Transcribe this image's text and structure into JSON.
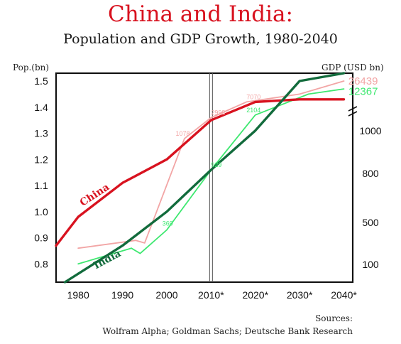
{
  "title": "China and India:",
  "subtitle": "Population and GDP Growth, 1980-2040",
  "sources_heading": "Sources:",
  "sources_text": "Wolfram Alpha; Goldman Sachs; Deutsche Bank Research",
  "colors": {
    "china_pop": "#d8121f",
    "china_gdp": "#f2a5a5",
    "india_pop": "#126b3c",
    "india_gdp": "#3ee870",
    "axis": "#111111",
    "title": "#d8121f"
  },
  "chart_data": {
    "type": "line",
    "title": "Population and GDP Growth, 1980-2040",
    "x_tick_labels": [
      "1980",
      "1990",
      "2000",
      "2010*",
      "2020*",
      "2030*",
      "2040*"
    ],
    "x_ticks": [
      1980,
      1990,
      2000,
      2010,
      2020,
      2030,
      2040
    ],
    "xlim": [
      1975,
      2042
    ],
    "y_left": {
      "label": "Pop.(bn)",
      "ticks": [
        0.8,
        0.9,
        1.0,
        1.1,
        1.2,
        1.3,
        1.4,
        1.5
      ],
      "tick_labels": [
        "0.8",
        "0.9",
        "1.0",
        "1.1",
        "1.2",
        "1.3",
        "1.4",
        "1.5"
      ],
      "lim": [
        0.73,
        1.53
      ]
    },
    "y_right": {
      "label": "GDP (USD bn)",
      "tick_labels": [
        "100",
        "500",
        "800",
        "1000"
      ],
      "scale": "non-linear, broken axis"
    },
    "divider_year": 2010,
    "series": [
      {
        "name": "China",
        "measure": "population",
        "axis": "left",
        "x": [
          1975,
          1980,
          1990,
          2000,
          2010,
          2020,
          2030,
          2040
        ],
        "y": [
          0.87,
          0.98,
          1.11,
          1.2,
          1.35,
          1.42,
          1.43,
          1.43
        ]
      },
      {
        "name": "India",
        "measure": "population",
        "axis": "left",
        "x": [
          1977,
          1990,
          2000,
          2010,
          2020,
          2030,
          2040
        ],
        "y": [
          0.73,
          0.87,
          1.0,
          1.16,
          1.31,
          1.5,
          1.53
        ]
      },
      {
        "measure": "gdp",
        "country": "China",
        "axis": "right",
        "x": [
          1980,
          1993,
          1995,
          2004,
          2010,
          2018,
          2030,
          2040
        ],
        "y": [
          0.86,
          0.89,
          0.88,
          1.28,
          1.36,
          1.42,
          1.45,
          1.5
        ],
        "labels": [
          {
            "x": 2002,
            "y": 1.28,
            "text": "1078"
          },
          {
            "x": 2010,
            "y": 1.36,
            "text": "2998"
          },
          {
            "x": 2018,
            "y": 1.42,
            "text": "7070"
          },
          {
            "x": 2041,
            "y": 1.5,
            "text": "26439"
          }
        ]
      },
      {
        "measure": "gdp",
        "country": "India",
        "axis": "right",
        "x": [
          1980,
          1992,
          1994,
          2000,
          2010,
          2020,
          2032,
          2040
        ],
        "y": [
          0.8,
          0.86,
          0.84,
          0.93,
          1.16,
          1.37,
          1.45,
          1.47
        ],
        "labels": [
          {
            "x": 1999,
            "y": 0.935,
            "text": "369"
          },
          {
            "x": 2010,
            "y": 1.16,
            "text": "929"
          },
          {
            "x": 2018,
            "y": 1.37,
            "text": "2104"
          },
          {
            "x": 2041,
            "y": 1.46,
            "text": "12367"
          }
        ]
      }
    ],
    "series_labels": [
      {
        "text": "China",
        "x": 1981,
        "y": 1.02
      },
      {
        "text": "India",
        "x": 1984,
        "y": 0.78
      }
    ],
    "grid": false,
    "legend": "none"
  }
}
